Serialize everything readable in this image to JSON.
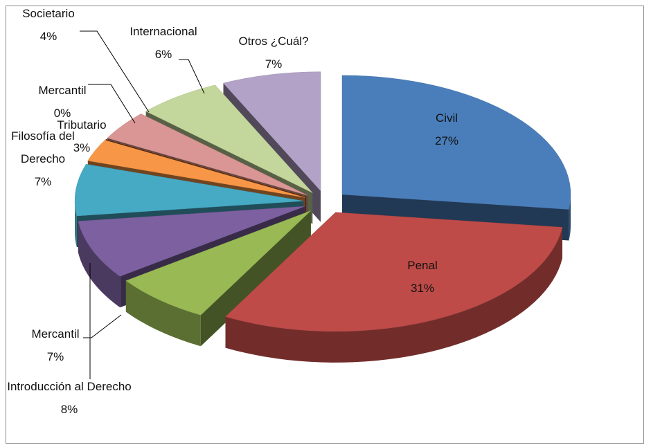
{
  "chart_data": {
    "type": "pie",
    "categories": [
      "Civil",
      "Penal",
      "Mercantil",
      "Introducción al Derecho",
      "Filosofía del Derecho",
      "Tributario",
      "Mercantil",
      "Societario",
      "Internacional",
      "Otros ¿Cuál?"
    ],
    "values": [
      27,
      31,
      7,
      8,
      7,
      3,
      0,
      4,
      6,
      7
    ],
    "value_labels": [
      "27%",
      "31%",
      "7%",
      "8%",
      "7%",
      "3%",
      "0%",
      "4%",
      "6%",
      "7%"
    ],
    "colors": [
      "#4a7ebb",
      "#be4b48",
      "#98b954",
      "#7d60a0",
      "#46aac5",
      "#f79646",
      "#a0522d",
      "#d99694",
      "#c3d69b",
      "#b3a2c7"
    ]
  }
}
